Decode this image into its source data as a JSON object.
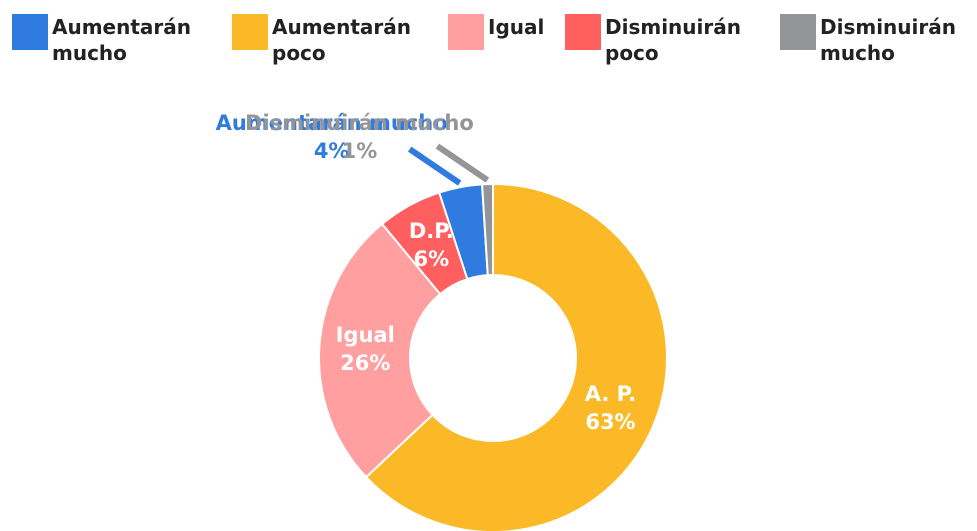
{
  "chart_data": {
    "type": "donut",
    "categories": [
      "Aumentarán poco",
      "Igual",
      "Disminuirán poco",
      "Aumentarán mucho",
      "Disminuirán mucho"
    ],
    "values": [
      63,
      26,
      6,
      4,
      1
    ],
    "value_labels": [
      "63%",
      "26%",
      "6%",
      "4%",
      "1%"
    ],
    "slice_labels": [
      "A. P.",
      "Igual",
      "D.P.",
      null,
      null
    ],
    "colors": [
      "#fbb928",
      "#ff9f9f",
      "#ff5f5f",
      "#2f7be0",
      "#939598"
    ],
    "legend": [
      "Aumentarán mucho",
      "Aumentarán poco",
      "Igual",
      "Disminuirán poco",
      "Disminuirán mucho"
    ]
  }
}
